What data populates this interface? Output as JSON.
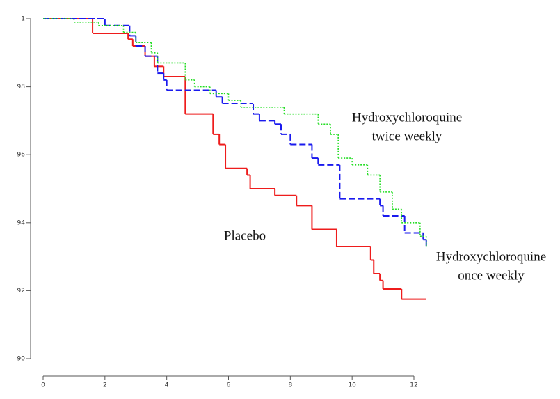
{
  "chart_data": {
    "type": "step",
    "xlim": [
      0,
      12
    ],
    "ylim": [
      90,
      100
    ],
    "xticks": [
      0,
      2,
      4,
      6,
      8,
      10,
      12
    ],
    "yticks": [
      {
        "value": 100,
        "label": "1"
      },
      98,
      96,
      94,
      92,
      90
    ],
    "series": [
      {
        "color": "#ee1c1c",
        "dash": "solid",
        "x": [
          0,
          1.6,
          2.75,
          2.9,
          3.3,
          3.6,
          3.9,
          4.6,
          5.5,
          5.7,
          5.9,
          6.6,
          6.7,
          7.5,
          8.2,
          8.7,
          9.5,
          10.6,
          10.7,
          10.9,
          11.0,
          11.6,
          12.4
        ],
        "values": [
          100,
          99.57,
          99.4,
          99.2,
          98.9,
          98.6,
          98.3,
          97.2,
          96.6,
          96.3,
          95.6,
          95.4,
          95.0,
          94.8,
          94.5,
          93.8,
          93.3,
          92.9,
          92.5,
          92.3,
          92.05,
          91.75,
          91.75
        ]
      },
      {
        "color": "#1a1aee",
        "dash": "dashed",
        "x": [
          0,
          2.0,
          2.8,
          3.0,
          3.3,
          3.7,
          3.9,
          4.0,
          5.6,
          5.8,
          6.8,
          7.0,
          7.5,
          7.7,
          8.0,
          8.7,
          8.9,
          9.6,
          10.9,
          11.0,
          11.7,
          12.3,
          12.4
        ],
        "values": [
          100,
          99.8,
          99.5,
          99.2,
          98.9,
          98.4,
          98.2,
          97.9,
          97.7,
          97.5,
          97.2,
          97.0,
          96.9,
          96.6,
          96.3,
          95.9,
          95.7,
          94.7,
          94.5,
          94.2,
          93.7,
          93.5,
          93.3
        ]
      },
      {
        "color": "#22dd22",
        "dash": "dotted",
        "x": [
          0,
          1.0,
          1.8,
          2.6,
          3.0,
          3.5,
          3.7,
          4.6,
          4.9,
          5.4,
          6.0,
          6.4,
          7.8,
          8.9,
          9.3,
          9.55,
          10.0,
          10.5,
          10.9,
          11.3,
          11.6,
          12.2,
          12.4
        ],
        "values": [
          100,
          99.9,
          99.8,
          99.6,
          99.3,
          99.0,
          98.7,
          98.2,
          98.0,
          97.8,
          97.6,
          97.4,
          97.2,
          96.9,
          96.6,
          95.9,
          95.7,
          95.4,
          94.9,
          94.4,
          94.0,
          93.6,
          93.3
        ]
      }
    ],
    "annotations": [
      [
        "Hydroxychloroquine",
        "twice weekly"
      ],
      [
        "Placebo"
      ],
      [
        "Hydroxychloroquine",
        "once weekly"
      ]
    ]
  }
}
